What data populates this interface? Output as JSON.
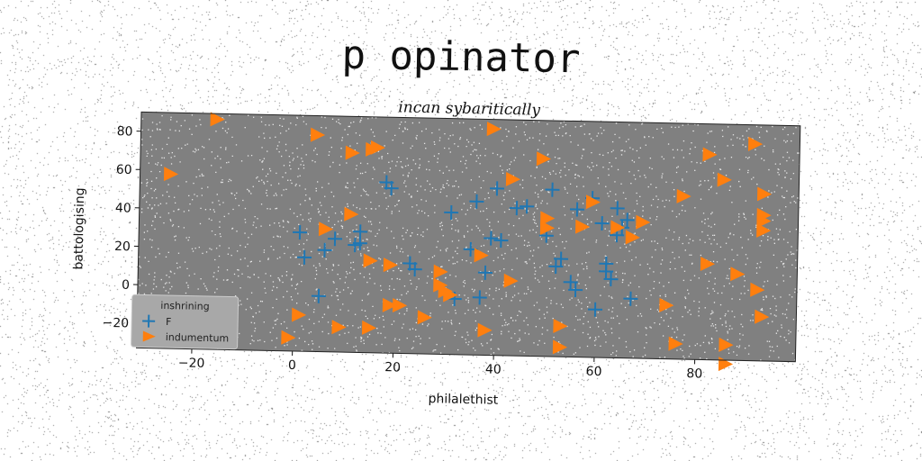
{
  "page": {
    "title": "p opinator"
  },
  "chart_data": {
    "type": "scatter",
    "title": "incan sybaritically",
    "xlabel": "philalethist",
    "ylabel": "battologising",
    "xlim": [
      -31,
      100
    ],
    "ylim": [
      -33,
      90
    ],
    "xticks": [
      -20,
      0,
      20,
      40,
      60,
      80
    ],
    "yticks": [
      -20,
      0,
      20,
      40,
      60,
      80
    ],
    "grid": false,
    "legend": {
      "title": "inshrining",
      "placement": "lower-left"
    },
    "background_color": "#808080",
    "series": [
      {
        "name": "F",
        "marker": "plus",
        "color": "#1f77b4",
        "points": [
          [
            1,
            29
          ],
          [
            2,
            16
          ],
          [
            5,
            -4
          ],
          [
            6,
            20
          ],
          [
            8,
            26
          ],
          [
            13,
            30
          ],
          [
            13,
            24
          ],
          [
            12,
            23
          ],
          [
            18,
            56
          ],
          [
            19,
            53
          ],
          [
            23,
            14
          ],
          [
            24,
            11
          ],
          [
            31,
            41
          ],
          [
            32,
            -4
          ],
          [
            36,
            47
          ],
          [
            35,
            22
          ],
          [
            37,
            -3
          ],
          [
            38,
            10
          ],
          [
            39,
            28
          ],
          [
            40,
            54
          ],
          [
            41,
            27
          ],
          [
            44,
            44
          ],
          [
            46,
            45
          ],
          [
            51,
            54
          ],
          [
            50,
            30
          ],
          [
            52,
            14
          ],
          [
            53,
            18
          ],
          [
            55,
            6
          ],
          [
            56,
            2
          ],
          [
            56,
            44
          ],
          [
            59,
            50
          ],
          [
            60,
            -8
          ],
          [
            61,
            37
          ],
          [
            62,
            16
          ],
          [
            62,
            12
          ],
          [
            63,
            8
          ],
          [
            64,
            45
          ],
          [
            64,
            31
          ],
          [
            65,
            35
          ],
          [
            66,
            39
          ],
          [
            67,
            -2
          ]
        ]
      },
      {
        "name": "indumentum",
        "marker": "triangle-right",
        "color": "#ff7f0e",
        "points": [
          [
            -16,
            87
          ],
          [
            -25,
            58
          ],
          [
            4,
            80
          ],
          [
            11,
            71
          ],
          [
            15,
            73
          ],
          [
            16,
            74
          ],
          [
            6,
            31
          ],
          [
            11,
            39
          ],
          [
            15,
            15
          ],
          [
            19,
            13
          ],
          [
            19,
            -8
          ],
          [
            21,
            -8
          ],
          [
            29,
            10
          ],
          [
            29,
            3
          ],
          [
            30,
            0
          ],
          [
            31,
            -2
          ],
          [
            26,
            -14
          ],
          [
            37,
            19
          ],
          [
            38,
            -20
          ],
          [
            39,
            85
          ],
          [
            43,
            59
          ],
          [
            43,
            6
          ],
          [
            49,
            70
          ],
          [
            50,
            39
          ],
          [
            50,
            34
          ],
          [
            53,
            -17
          ],
          [
            53,
            -28
          ],
          [
            57,
            35
          ],
          [
            59,
            48
          ],
          [
            64,
            35
          ],
          [
            67,
            30
          ],
          [
            69,
            38
          ],
          [
            74,
            -5
          ],
          [
            76,
            -25
          ],
          [
            77,
            52
          ],
          [
            82,
            74
          ],
          [
            82,
            17
          ],
          [
            85,
            61
          ],
          [
            86,
            -25
          ],
          [
            86,
            -35
          ],
          [
            88,
            12
          ],
          [
            91,
            80
          ],
          [
            93,
            54
          ],
          [
            93,
            43
          ],
          [
            93,
            40
          ],
          [
            93,
            35
          ],
          [
            92,
            4
          ],
          [
            93,
            -10
          ],
          [
            1,
            -14
          ],
          [
            -1,
            -26
          ],
          [
            9,
            -20
          ],
          [
            15,
            -20
          ]
        ]
      }
    ]
  }
}
